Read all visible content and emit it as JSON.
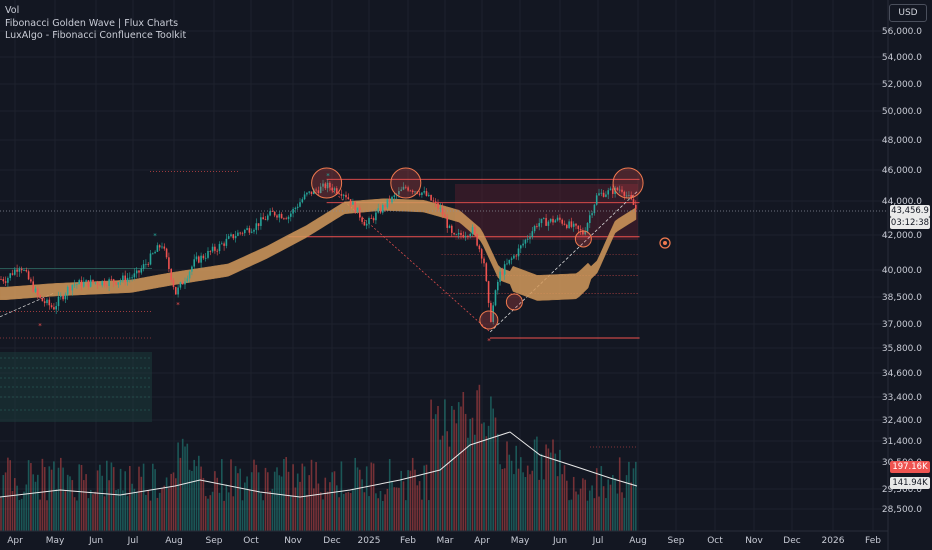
{
  "legend": [
    "Vol",
    "Fibonacci Golden Wave | Flux Charts",
    "LuxAlgo - Fibonacci Confluence Toolkit"
  ],
  "currency": "USD",
  "colors": {
    "background": "#131722",
    "grid": "#1e222d",
    "up": "#26a69a",
    "down": "#ef5350",
    "band": "#d39a5c",
    "ma": "#e8e8e8",
    "fib": "#f0514f"
  },
  "last_price": {
    "price": "43,456.9",
    "countdown": "03:12:38"
  },
  "volume_tags": {
    "volume": "197.16K",
    "average": "141.94K"
  },
  "chart_data": {
    "type": "candlestick",
    "y_ticks": [
      "56,000.0",
      "54,000.0",
      "52,000.0",
      "50,000.0",
      "48,000.0",
      "46,000.0",
      "44,000.0",
      "42,000.0",
      "40,000.0",
      "38,500.0",
      "37,000.0",
      "35,800.0",
      "34,600.0",
      "33,400.0",
      "32,400.0",
      "31,400.0",
      "30,500.0",
      "29,500.0",
      "28,500.0"
    ],
    "x_ticks": [
      "Apr",
      "May",
      "Jun",
      "Jul",
      "Aug",
      "Sep",
      "Oct",
      "Nov",
      "Dec",
      "2025",
      "Feb",
      "Mar",
      "Apr",
      "May",
      "Jun",
      "Jul",
      "Aug",
      "Sep",
      "Oct",
      "Nov",
      "Dec",
      "2026",
      "Feb"
    ],
    "price_path": [
      [
        "2024-03-25",
        39500
      ],
      [
        "2024-04-05",
        40300
      ],
      [
        "2024-04-20",
        38400
      ],
      [
        "2024-05-01",
        37900
      ],
      [
        "2024-05-15",
        39200
      ],
      [
        "2024-06-01",
        39300
      ],
      [
        "2024-06-20",
        39400
      ],
      [
        "2024-07-05",
        39700
      ],
      [
        "2024-07-25",
        41500
      ],
      [
        "2024-08-05",
        38700
      ],
      [
        "2024-08-20",
        40500
      ],
      [
        "2024-09-05",
        41200
      ],
      [
        "2024-09-20",
        42000
      ],
      [
        "2024-10-05",
        42500
      ],
      [
        "2024-10-20",
        43300
      ],
      [
        "2024-11-01",
        43100
      ],
      [
        "2024-11-15",
        44400
      ],
      [
        "2024-12-01",
        45000
      ],
      [
        "2024-12-15",
        44500
      ],
      [
        "2025-01-01",
        42600
      ],
      [
        "2025-01-15",
        43700
      ],
      [
        "2025-02-01",
        44900
      ],
      [
        "2025-02-15",
        44500
      ],
      [
        "2025-03-01",
        43400
      ],
      [
        "2025-03-10",
        41800
      ],
      [
        "2025-03-25",
        42300
      ],
      [
        "2025-04-03",
        40600
      ],
      [
        "2025-04-08",
        37100
      ],
      [
        "2025-04-15",
        39700
      ],
      [
        "2025-05-01",
        41200
      ],
      [
        "2025-05-15",
        42700
      ],
      [
        "2025-06-01",
        42900
      ],
      [
        "2025-06-20",
        42100
      ],
      [
        "2025-07-01",
        44400
      ],
      [
        "2025-07-20",
        44800
      ],
      [
        "2025-08-01",
        43457
      ]
    ],
    "band_path": [
      [
        "2024-03-25",
        38700
      ],
      [
        "2024-05-01",
        38900
      ],
      [
        "2024-07-01",
        39100
      ],
      [
        "2024-08-01",
        39500
      ],
      [
        "2024-09-15",
        40000
      ],
      [
        "2024-10-15",
        41000
      ],
      [
        "2024-11-15",
        42200
      ],
      [
        "2024-12-15",
        43600
      ],
      [
        "2025-01-15",
        43800
      ],
      [
        "2025-02-15",
        43700
      ],
      [
        "2025-03-15",
        43100
      ],
      [
        "2025-04-01",
        42000
      ],
      [
        "2025-04-15",
        39800
      ],
      [
        "2025-05-15",
        39000
      ],
      [
        "2025-06-15",
        39100
      ],
      [
        "2025-07-01",
        40200
      ],
      [
        "2025-07-15",
        42500
      ],
      [
        "2025-08-01",
        43300
      ]
    ],
    "fib_levels": [
      {
        "from": "2024-12-01",
        "to": "2025-08-03",
        "y": 45400
      },
      {
        "from": "2024-12-01",
        "to": "2025-08-03",
        "y": 43900
      },
      {
        "from": "2024-11-01",
        "to": "2025-08-03",
        "y": 41900
      },
      {
        "from": "2025-03-01",
        "to": "2025-08-03",
        "y": 40900
      },
      {
        "from": "2025-03-01",
        "to": "2025-08-03",
        "y": 39700
      },
      {
        "from": "2025-03-01",
        "to": "2025-08-03",
        "y": 38700
      },
      {
        "from": "2025-04-08",
        "to": "2025-08-03",
        "y": 36300
      }
    ],
    "volume_tag": "197.16K",
    "volume_average_tag": "141.94K",
    "price_scale": "linear",
    "legend": "top-left"
  }
}
